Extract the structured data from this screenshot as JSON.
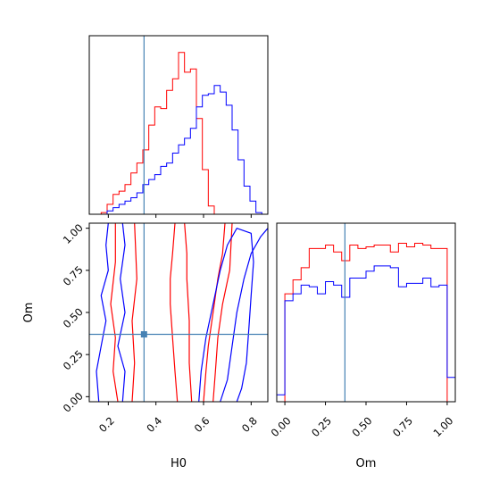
{
  "chart_data": [
    {
      "type": "histogram",
      "panel": "H0 marginal",
      "xlim": [
        0.12,
        0.87
      ],
      "truth": 0.35,
      "colors": {
        "series_a": "#ff0000",
        "series_b": "#0000ff",
        "truth": "#4682b4"
      },
      "bins": [
        0.12,
        0.145,
        0.17,
        0.195,
        0.22,
        0.245,
        0.27,
        0.295,
        0.32,
        0.345,
        0.37,
        0.395,
        0.42,
        0.445,
        0.47,
        0.495,
        0.52,
        0.545,
        0.57,
        0.595,
        0.62,
        0.645,
        0.67,
        0.695,
        0.72,
        0.745,
        0.77,
        0.795,
        0.82,
        0.845,
        0.87
      ],
      "series": [
        {
          "values": [
            0.0,
            0.0,
            0.01,
            0.06,
            0.12,
            0.14,
            0.18,
            0.25,
            0.31,
            0.39,
            0.54,
            0.65,
            0.64,
            0.75,
            0.82,
            0.98,
            0.86,
            0.88,
            0.58,
            0.27,
            0.05,
            0.0,
            0.0,
            0.0,
            0.0,
            0.0,
            0.0,
            0.0,
            0.0,
            0.0
          ]
        },
        {
          "values": [
            0.0,
            0.0,
            0.0,
            0.02,
            0.04,
            0.06,
            0.08,
            0.1,
            0.13,
            0.18,
            0.21,
            0.24,
            0.29,
            0.31,
            0.37,
            0.42,
            0.46,
            0.52,
            0.65,
            0.72,
            0.73,
            0.78,
            0.74,
            0.66,
            0.51,
            0.33,
            0.17,
            0.08,
            0.01,
            0.0
          ]
        }
      ]
    },
    {
      "type": "contour",
      "panel": "H0 vs Om",
      "xlabel": "H0",
      "ylabel": "Om",
      "xlim": [
        0.12,
        0.87
      ],
      "ylim": [
        -0.03,
        1.03
      ],
      "xticks": [
        "0.2",
        "0.4",
        "0.6",
        "0.8"
      ],
      "yticks": [
        "0.00",
        "0.25",
        "0.50",
        "0.75",
        "1.00"
      ],
      "truth": {
        "x": 0.35,
        "y": 0.37
      },
      "series": [
        {
          "color": "#ff0000",
          "contours": [
            [
              [
                0.49,
                -0.03
              ],
              [
                0.48,
                0.15
              ],
              [
                0.47,
                0.35
              ],
              [
                0.46,
                0.55
              ],
              [
                0.46,
                0.7
              ],
              [
                0.47,
                0.85
              ],
              [
                0.48,
                1.03
              ]
            ],
            [
              [
                0.55,
                -0.03
              ],
              [
                0.54,
                0.2
              ],
              [
                0.54,
                0.45
              ],
              [
                0.53,
                0.7
              ],
              [
                0.53,
                0.85
              ],
              [
                0.52,
                1.03
              ]
            ],
            [
              [
                0.6,
                -0.03
              ],
              [
                0.61,
                0.15
              ],
              [
                0.62,
                0.3
              ],
              [
                0.64,
                0.5
              ],
              [
                0.66,
                0.7
              ],
              [
                0.68,
                0.85
              ],
              [
                0.69,
                1.03
              ]
            ],
            [
              [
                0.64,
                -0.03
              ],
              [
                0.65,
                0.15
              ],
              [
                0.66,
                0.35
              ],
              [
                0.68,
                0.55
              ],
              [
                0.71,
                0.75
              ],
              [
                0.72,
                1.03
              ]
            ],
            [
              [
                0.24,
                -0.03
              ],
              [
                0.22,
                0.15
              ],
              [
                0.23,
                0.35
              ],
              [
                0.21,
                0.55
              ],
              [
                0.23,
                0.8
              ],
              [
                0.23,
                1.03
              ]
            ],
            [
              [
                0.3,
                -0.03
              ],
              [
                0.31,
                0.2
              ],
              [
                0.3,
                0.45
              ],
              [
                0.32,
                0.7
              ],
              [
                0.31,
                1.03
              ]
            ]
          ]
        },
        {
          "color": "#0000ff",
          "contours": [
            [
              [
                0.58,
                -0.03
              ],
              [
                0.59,
                0.15
              ],
              [
                0.61,
                0.35
              ],
              [
                0.64,
                0.55
              ],
              [
                0.67,
                0.75
              ],
              [
                0.7,
                0.9
              ],
              [
                0.74,
                1.0
              ],
              [
                0.8,
                0.97
              ],
              [
                0.81,
                0.8
              ],
              [
                0.8,
                0.6
              ],
              [
                0.79,
                0.4
              ],
              [
                0.78,
                0.2
              ],
              [
                0.76,
                0.05
              ],
              [
                0.74,
                -0.03
              ]
            ],
            [
              [
                0.67,
                -0.03
              ],
              [
                0.7,
                0.1
              ],
              [
                0.72,
                0.3
              ],
              [
                0.74,
                0.5
              ],
              [
                0.77,
                0.7
              ],
              [
                0.8,
                0.85
              ],
              [
                0.84,
                0.95
              ],
              [
                0.87,
                1.0
              ]
            ],
            [
              [
                0.16,
                -0.03
              ],
              [
                0.15,
                0.15
              ],
              [
                0.17,
                0.3
              ],
              [
                0.19,
                0.45
              ],
              [
                0.17,
                0.6
              ],
              [
                0.2,
                0.75
              ],
              [
                0.19,
                0.9
              ],
              [
                0.2,
                1.03
              ]
            ],
            [
              [
                0.26,
                -0.03
              ],
              [
                0.27,
                0.15
              ],
              [
                0.24,
                0.3
              ],
              [
                0.27,
                0.5
              ],
              [
                0.25,
                0.7
              ],
              [
                0.27,
                0.9
              ],
              [
                0.26,
                1.03
              ]
            ]
          ]
        }
      ]
    },
    {
      "type": "histogram",
      "panel": "Om marginal",
      "xlabel": "Om",
      "xlim": [
        -0.05,
        1.05
      ],
      "xticks": [
        "0.00",
        "0.25",
        "0.50",
        "0.75",
        "1.00"
      ],
      "truth": 0.37,
      "bins": [
        -0.05,
        0.0,
        0.05,
        0.1,
        0.15,
        0.2,
        0.25,
        0.3,
        0.35,
        0.4,
        0.45,
        0.5,
        0.55,
        0.6,
        0.65,
        0.7,
        0.75,
        0.8,
        0.85,
        0.9,
        0.95,
        1.0,
        1.05
      ],
      "series": [
        {
          "values": [
            0.0,
            0.62,
            0.7,
            0.77,
            0.88,
            0.88,
            0.9,
            0.86,
            0.81,
            0.9,
            0.88,
            0.89,
            0.9,
            0.9,
            0.86,
            0.91,
            0.89,
            0.91,
            0.9,
            0.88,
            0.88,
            0.0
          ]
        },
        {
          "values": [
            0.04,
            0.58,
            0.62,
            0.67,
            0.66,
            0.62,
            0.69,
            0.67,
            0.6,
            0.71,
            0.71,
            0.75,
            0.78,
            0.78,
            0.77,
            0.66,
            0.68,
            0.68,
            0.71,
            0.66,
            0.67,
            0.14
          ]
        }
      ]
    }
  ]
}
